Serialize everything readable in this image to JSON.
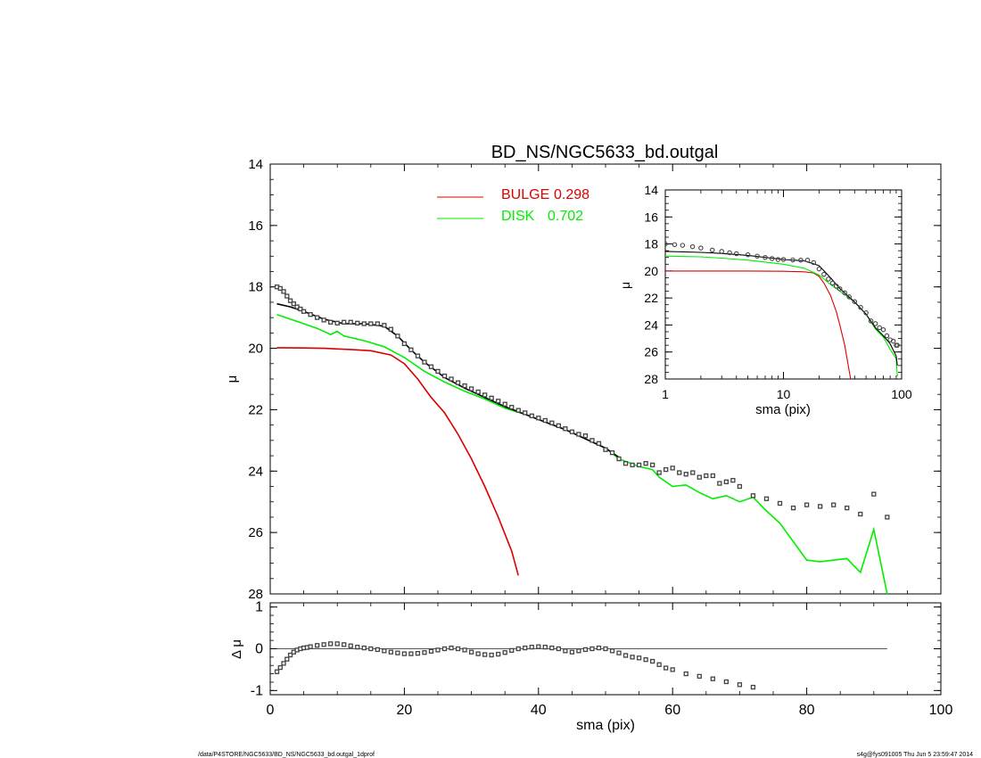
{
  "colors": {
    "bulge": "#dd0000",
    "disk": "#00ee00",
    "model": "#000000",
    "data": "#444444"
  },
  "chart_data": [
    {
      "type": "line",
      "id": "main",
      "title": "BD_NS/NGC5633_bd.outgal",
      "xlabel": "",
      "ylabel": "μ",
      "xlim": [
        0,
        100
      ],
      "ylim": [
        28,
        14
      ],
      "xticks": [
        0,
        20,
        40,
        60,
        80,
        100
      ],
      "yticks": [
        14,
        16,
        18,
        20,
        22,
        24,
        26,
        28
      ],
      "ytick_labels": [
        "14",
        "16",
        "18",
        "20",
        "22",
        "24",
        "26",
        "28"
      ],
      "legend": [
        {
          "name": "BULGE",
          "value": "0.298",
          "color": "#dd0000"
        },
        {
          "name": "DISK",
          "value": "0.702",
          "color": "#00ee00"
        }
      ],
      "series": [
        {
          "name": "bulge",
          "style": "line",
          "color": "#dd0000",
          "x": [
            1,
            5,
            8,
            10,
            12,
            15,
            18,
            20,
            22,
            24,
            26,
            28,
            30,
            32,
            34,
            36,
            37
          ],
          "y": [
            19.98,
            19.99,
            20.0,
            20.02,
            20.04,
            20.08,
            20.22,
            20.5,
            21.0,
            21.6,
            22.1,
            22.8,
            23.6,
            24.5,
            25.5,
            26.6,
            27.4
          ]
        },
        {
          "name": "disk",
          "style": "line",
          "color": "#00ee00",
          "x": [
            1,
            3,
            5,
            7,
            9,
            10,
            11,
            14,
            17,
            20,
            23,
            26,
            29,
            32,
            35,
            38,
            41,
            44,
            47,
            50,
            52,
            55,
            57,
            58,
            60,
            62,
            64,
            66,
            68,
            70,
            72,
            74,
            76,
            78,
            80,
            82,
            84,
            86,
            88,
            90,
            92
          ],
          "y": [
            18.9,
            19.05,
            19.2,
            19.35,
            19.55,
            19.45,
            19.6,
            19.75,
            19.95,
            20.3,
            20.75,
            21.1,
            21.4,
            21.65,
            21.95,
            22.15,
            22.4,
            22.65,
            22.95,
            23.25,
            23.6,
            23.85,
            23.95,
            24.2,
            24.5,
            24.45,
            24.7,
            24.9,
            24.8,
            25.0,
            24.85,
            25.3,
            25.7,
            26.3,
            26.9,
            26.95,
            26.9,
            26.85,
            27.3,
            25.9,
            28.0
          ]
        },
        {
          "name": "model",
          "style": "line",
          "color": "#000000",
          "x": [
            1,
            3,
            5,
            8,
            11,
            14,
            17,
            19,
            21,
            23,
            26,
            29,
            32,
            35,
            38,
            41,
            44,
            47,
            50,
            52
          ],
          "y": [
            18.55,
            18.65,
            18.8,
            19.05,
            19.2,
            19.2,
            19.28,
            19.6,
            20.05,
            20.45,
            20.95,
            21.3,
            21.6,
            21.9,
            22.15,
            22.4,
            22.65,
            22.95,
            23.25,
            23.55
          ]
        },
        {
          "name": "data",
          "style": "squares",
          "color": "#444444",
          "x": [
            1,
            1.5,
            2,
            2.5,
            3,
            3.5,
            4,
            4.5,
            5,
            6,
            7,
            8,
            9,
            10,
            11,
            12,
            13,
            14,
            15,
            16,
            17,
            18,
            19,
            20,
            21,
            22,
            23,
            24,
            25,
            26,
            27,
            28,
            29,
            30,
            31,
            32,
            33,
            34,
            35,
            36,
            37,
            38,
            39,
            40,
            41,
            42,
            43,
            44,
            45,
            46,
            47,
            48,
            49,
            50,
            51,
            52,
            53,
            54,
            55,
            56,
            57,
            58,
            59,
            60,
            61,
            62,
            63,
            64,
            65,
            66,
            67,
            68,
            69,
            70,
            72,
            74,
            76,
            78,
            80,
            82,
            84,
            86,
            88,
            90,
            92
          ],
          "y": [
            18.0,
            18.05,
            18.15,
            18.3,
            18.45,
            18.55,
            18.65,
            18.72,
            18.8,
            18.9,
            19.0,
            19.08,
            19.15,
            19.18,
            19.15,
            19.15,
            19.18,
            19.2,
            19.2,
            19.2,
            19.25,
            19.38,
            19.6,
            19.85,
            20.05,
            20.25,
            20.45,
            20.6,
            20.75,
            20.9,
            21.0,
            21.12,
            21.22,
            21.32,
            21.42,
            21.52,
            21.62,
            21.72,
            21.82,
            21.92,
            22.02,
            22.1,
            22.2,
            22.27,
            22.35,
            22.43,
            22.52,
            22.62,
            22.72,
            22.8,
            22.85,
            23.0,
            23.1,
            23.3,
            23.4,
            23.6,
            23.75,
            23.8,
            23.8,
            23.75,
            23.8,
            24.05,
            23.95,
            23.9,
            24.05,
            24.1,
            24.05,
            24.2,
            24.15,
            24.15,
            24.4,
            24.35,
            24.3,
            24.5,
            24.8,
            24.9,
            25.05,
            25.2,
            25.1,
            25.15,
            25.1,
            25.2,
            25.4,
            24.75,
            25.5
          ]
        }
      ]
    },
    {
      "type": "line",
      "id": "inset",
      "xlabel": "sma (pix)",
      "ylabel": "μ",
      "xscale": "log",
      "xlim": [
        1,
        100
      ],
      "ylim": [
        28,
        14
      ],
      "xticks": [
        1,
        10,
        100
      ],
      "xtick_labels": [
        "1",
        "10",
        "100"
      ],
      "yticks": [
        14,
        16,
        18,
        20,
        22,
        24,
        26,
        28
      ],
      "ytick_labels": [
        "14",
        "16",
        "18",
        "20",
        "22",
        "24",
        "26",
        "28"
      ],
      "series": [
        {
          "name": "bulge",
          "style": "line",
          "color": "#dd0000",
          "x": [
            1,
            5,
            10,
            15,
            18,
            20,
            22,
            25,
            28,
            30,
            33,
            35,
            37
          ],
          "y": [
            20.0,
            20.0,
            20.02,
            20.06,
            20.15,
            20.4,
            20.9,
            21.8,
            23.0,
            24.0,
            25.5,
            26.8,
            28.0
          ]
        },
        {
          "name": "disk",
          "style": "line",
          "color": "#00ee00",
          "x": [
            1,
            2,
            3,
            5,
            8,
            10,
            15,
            20,
            25,
            30,
            40,
            50,
            60,
            70,
            80,
            90,
            92
          ],
          "y": [
            18.9,
            18.95,
            19.05,
            19.2,
            19.4,
            19.5,
            19.8,
            20.3,
            21.0,
            21.5,
            22.3,
            23.2,
            24.3,
            24.9,
            25.8,
            26.5,
            27.8
          ]
        },
        {
          "name": "model",
          "style": "line",
          "color": "#000000",
          "x": [
            1,
            2,
            3,
            5,
            8,
            10,
            15,
            20,
            25,
            30,
            40,
            50,
            60,
            70,
            80,
            90,
            92
          ],
          "y": [
            18.55,
            18.62,
            18.7,
            18.85,
            19.05,
            19.15,
            19.25,
            19.6,
            20.5,
            21.3,
            22.3,
            23.2,
            24.2,
            24.8,
            25.4,
            26.3,
            27.0
          ]
        },
        {
          "name": "data",
          "style": "circles",
          "color": "#444444",
          "x": [
            1,
            1.2,
            1.4,
            1.7,
            2,
            2.5,
            3,
            3.5,
            4,
            5,
            6,
            7,
            8,
            9,
            10,
            12,
            14,
            16,
            18,
            20,
            22,
            24,
            26,
            28,
            30,
            33,
            36,
            40,
            45,
            50,
            55,
            60,
            65,
            70,
            75,
            80,
            85,
            90,
            92
          ],
          "y": [
            18.0,
            18.05,
            18.1,
            18.2,
            18.3,
            18.45,
            18.55,
            18.65,
            18.72,
            18.8,
            18.9,
            19.0,
            19.08,
            19.15,
            19.15,
            19.18,
            19.2,
            19.2,
            19.38,
            19.85,
            20.25,
            20.6,
            20.9,
            21.12,
            21.32,
            21.62,
            21.92,
            22.27,
            22.7,
            23.1,
            23.7,
            23.9,
            24.2,
            24.35,
            24.8,
            25.1,
            25.2,
            25.5,
            25.5
          ]
        }
      ]
    },
    {
      "type": "scatter",
      "id": "residual",
      "xlabel": "sma (pix)",
      "ylabel": "Δ μ",
      "xlim": [
        0,
        100
      ],
      "ylim": [
        -1.1,
        1.1
      ],
      "xticks": [
        0,
        20,
        40,
        60,
        80,
        100
      ],
      "xtick_labels": [
        "0",
        "20",
        "40",
        "60",
        "80",
        "100"
      ],
      "yticks": [
        -1,
        0,
        1
      ],
      "ytick_labels": [
        "-1",
        "0",
        "1"
      ],
      "reference_line": {
        "y": 0,
        "xmin": 1,
        "xmax": 92
      },
      "series": [
        {
          "name": "residual",
          "style": "squares",
          "color": "#444444",
          "x": [
            1,
            1.5,
            2,
            2.5,
            3,
            3.5,
            4,
            4.5,
            5,
            5.5,
            6,
            7,
            8,
            9,
            10,
            11,
            12,
            13,
            14,
            15,
            16,
            17,
            18,
            19,
            20,
            21,
            22,
            23,
            24,
            25,
            26,
            27,
            28,
            29,
            30,
            31,
            32,
            33,
            34,
            35,
            36,
            37,
            38,
            39,
            40,
            41,
            42,
            43,
            44,
            45,
            46,
            47,
            48,
            49,
            50,
            51,
            52,
            53,
            54,
            55,
            56,
            57,
            58,
            59,
            60,
            62,
            64,
            66,
            68,
            70,
            72
          ],
          "y": [
            -0.55,
            -0.45,
            -0.35,
            -0.25,
            -0.15,
            -0.08,
            -0.03,
            0.0,
            0.02,
            0.03,
            0.05,
            0.08,
            0.1,
            0.12,
            0.12,
            0.1,
            0.07,
            0.04,
            0.02,
            0.0,
            -0.02,
            -0.05,
            -0.08,
            -0.1,
            -0.12,
            -0.12,
            -0.11,
            -0.09,
            -0.06,
            -0.03,
            0.0,
            0.02,
            0.0,
            -0.03,
            -0.08,
            -0.12,
            -0.14,
            -0.15,
            -0.13,
            -0.09,
            -0.04,
            0.0,
            0.02,
            0.04,
            0.05,
            0.04,
            0.02,
            0.0,
            -0.05,
            -0.08,
            -0.05,
            -0.02,
            0.0,
            0.02,
            0.0,
            -0.05,
            -0.1,
            -0.16,
            -0.2,
            -0.22,
            -0.26,
            -0.3,
            -0.38,
            -0.46,
            -0.5,
            -0.6,
            -0.66,
            -0.72,
            -0.79,
            -0.86,
            -0.92
          ]
        }
      ]
    }
  ],
  "footer": {
    "path": "/data/P4STORE/NGC5633/BD_NS/NGC5633_bd.outgal_1dprof",
    "stamp": "s4g@fys091005  Thu Jun  5 23:59:47 2014"
  }
}
